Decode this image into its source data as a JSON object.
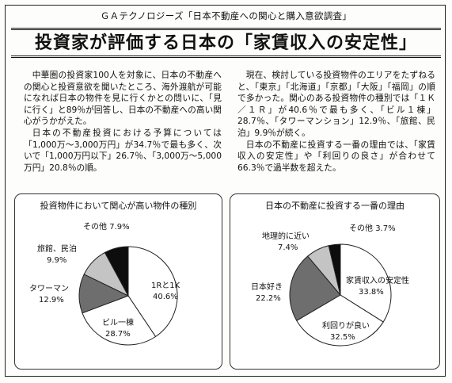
{
  "header": {
    "kicker": "ＧＡテクノロジーズ「日本不動産への関心と購入意欲調査」",
    "headline": "投資家が評価する日本の「家賃収入の安定性」"
  },
  "article": {
    "left_paragraphs": [
      "中華圏の投資家100人を対象に、日本の不動産への関心と投資意欲を聞いたところ、海外渡航が可能になれば日本の物件を見に行くかとの問いに、「見に行く」と89％が回答し、日本の不動産への高い関心がうかがえた。",
      "日本の不動産投資における予算については「1,000万～3,000万円」が34.7％で最も多く、次いで「1,000万円以下」26.7％、「3,000万～5,000万円」20.8％の順。"
    ],
    "right_paragraphs": [
      "現在、検討している投資物件のエリアをたずねると、「東京」「北海道」「京都」「大阪」「福岡」の順で多かった。関心のある投資物件の種別では「１Ｋ／１Ｒ」が40.6％で最も多く、「ビル１棟」28.7％、「タワーマンション」12.9％、「旅館、民泊」9.9％が続く。",
      "日本の不動産に投資する一番の理由では、「家賃収入の安定性」や「利回りの良さ」が合わせて66.3％で過半数を超えた。"
    ]
  },
  "chart_data": [
    {
      "type": "pie",
      "title": "投資物件において関心が高い物件の種別",
      "labels": [
        "1Rと1K",
        "ビル一棟",
        "タワーマン",
        "旅館、民泊",
        "その他"
      ],
      "values": [
        40.6,
        28.7,
        12.9,
        9.9,
        7.9
      ],
      "value_text": [
        "40.6%",
        "28.7%",
        "12.9%",
        "9.9%",
        "7.9%"
      ],
      "colors": [
        "#ffffff",
        "#ffffff",
        "#6e6e6e",
        "#c4c4c4",
        "#0d0d0d"
      ]
    },
    {
      "type": "pie",
      "title": "日本の不動産に投資する一番の理由",
      "labels": [
        "家賃収入の安定性",
        "利回りが良い",
        "日本好き",
        "地理的に近い",
        "その他"
      ],
      "values": [
        33.8,
        32.5,
        22.2,
        7.4,
        3.7
      ],
      "value_text": [
        "33.8%",
        "32.5%",
        "22.2%",
        "7.4%",
        "3.7%"
      ],
      "colors": [
        "#ffffff",
        "#ffffff",
        "#6e6e6e",
        "#c4c4c4",
        "#0d0d0d"
      ]
    }
  ]
}
